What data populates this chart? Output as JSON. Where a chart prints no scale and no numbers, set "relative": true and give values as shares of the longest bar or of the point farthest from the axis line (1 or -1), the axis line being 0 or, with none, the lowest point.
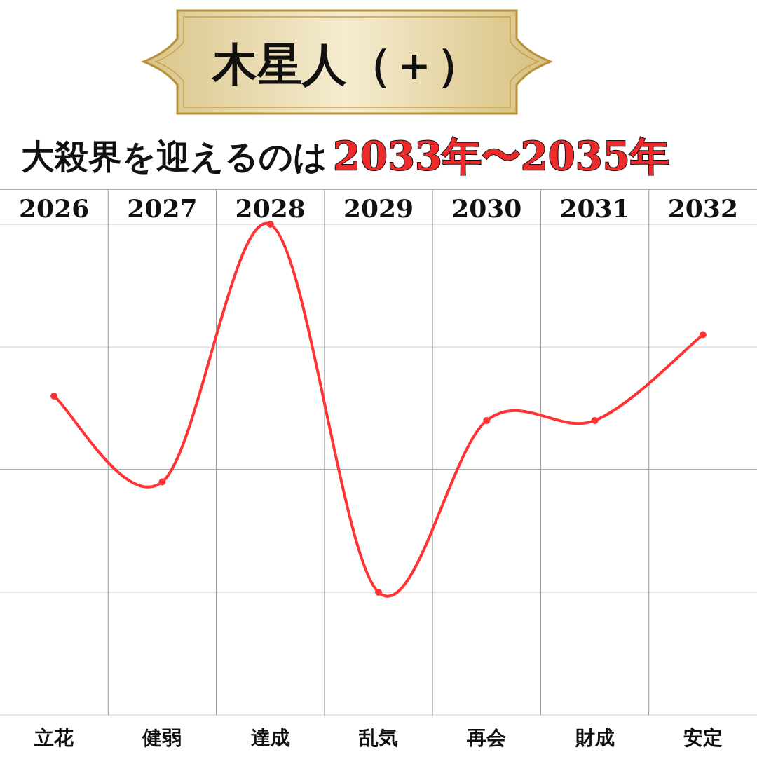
{
  "chart_data": {
    "type": "line",
    "title": "木星人（＋）",
    "subtitle": "大殺界を迎えるのは",
    "relative": true,
    "grid": "x",
    "marker": "circle",
    "line_style": "solid",
    "categories": [
      "2026",
      "2027",
      "2028",
      "2029",
      "2030",
      "2031",
      "2032"
    ],
    "series": [
      {
        "color": "#ff3333",
        "values": [
          0.3,
          -0.05,
          1,
          -0.5,
          0.2,
          0.2,
          0.55
        ]
      }
    ],
    "ref_lines": [
      {
        "axis": "y",
        "value": 0.5,
        "color": "#cccccc"
      },
      {
        "axis": "y",
        "value": -0.5,
        "color": "#cccccc"
      }
    ],
    "annotations": [
      "2033年〜2035年",
      "立花",
      "健弱",
      "達成",
      "乱気",
      "再会",
      "財成",
      "安定"
    ]
  }
}
